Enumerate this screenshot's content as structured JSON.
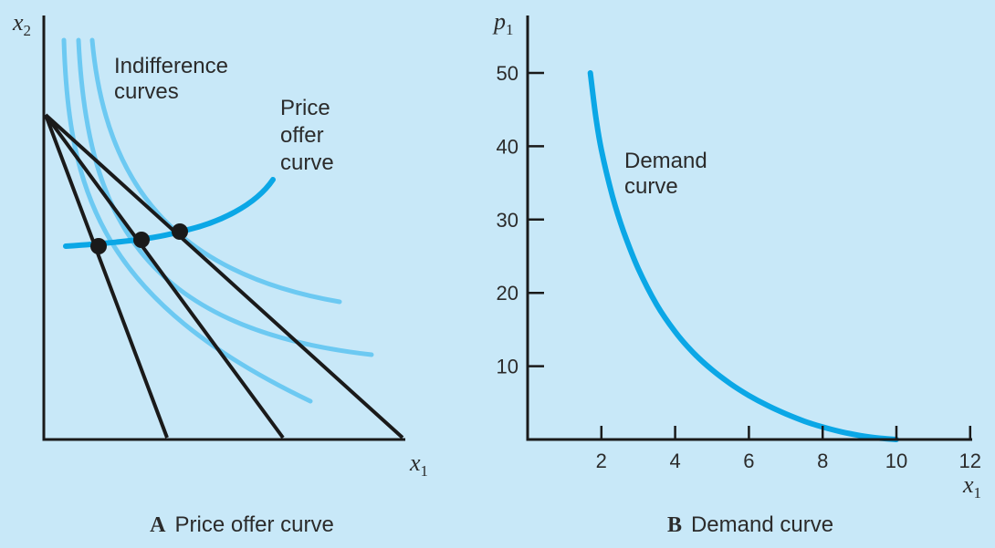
{
  "colors": {
    "background": "#c8e8f8",
    "indifference_curves": "#6cc9f2",
    "offer_and_demand_curve": "#0ba7e6",
    "budget_lines": "#1a1a1a"
  },
  "chart_data": [
    {
      "type": "line",
      "panel_letter": "A",
      "caption": "Price offer curve",
      "xlabel": "x",
      "xlabel_sub": "1",
      "ylabel": "x",
      "ylabel_sub": "2",
      "ticks": "none",
      "annotations": {
        "indifference_line1": "Indifference",
        "indifference_line2": "curves",
        "offer_line1": "Price",
        "offer_line2": "offer",
        "offer_line3": "curve"
      },
      "series": [
        {
          "kind": "budget",
          "count": 3,
          "shared_intercept": "x2-axis",
          "x1_intercepts": [
            "low",
            "mid",
            "high"
          ]
        },
        {
          "kind": "indifference",
          "count": 3
        },
        {
          "kind": "price-offer-curve",
          "equilibrium_points": 3
        }
      ]
    },
    {
      "type": "line",
      "panel_letter": "B",
      "caption": "Demand curve",
      "xlabel": "x",
      "xlabel_sub": "1",
      "ylabel": "p",
      "ylabel_sub": "1",
      "xlim": [
        0,
        12
      ],
      "ylim": [
        0,
        50
      ],
      "xticks": [
        "2",
        "4",
        "6",
        "8",
        "10",
        "12"
      ],
      "yticks": [
        "10",
        "20",
        "30",
        "40",
        "50"
      ],
      "annotation_line1": "Demand",
      "annotation_line2": "curve",
      "series": [
        {
          "kind": "demand",
          "x": [
            1.7,
            1.85,
            2.0,
            2.3,
            2.6,
            3.0,
            3.5,
            4.0,
            4.5,
            5.0,
            5.5,
            6.0,
            6.5,
            7.0,
            7.5,
            8.0,
            8.5,
            9.0,
            9.5,
            10.0
          ],
          "y": [
            50.0,
            44.0,
            39.5,
            33.2,
            28.4,
            23.3,
            18.4,
            14.7,
            11.8,
            9.5,
            7.6,
            6.0,
            4.65,
            3.5,
            2.5,
            1.7,
            1.05,
            0.55,
            0.2,
            0.0
          ]
        }
      ]
    }
  ]
}
